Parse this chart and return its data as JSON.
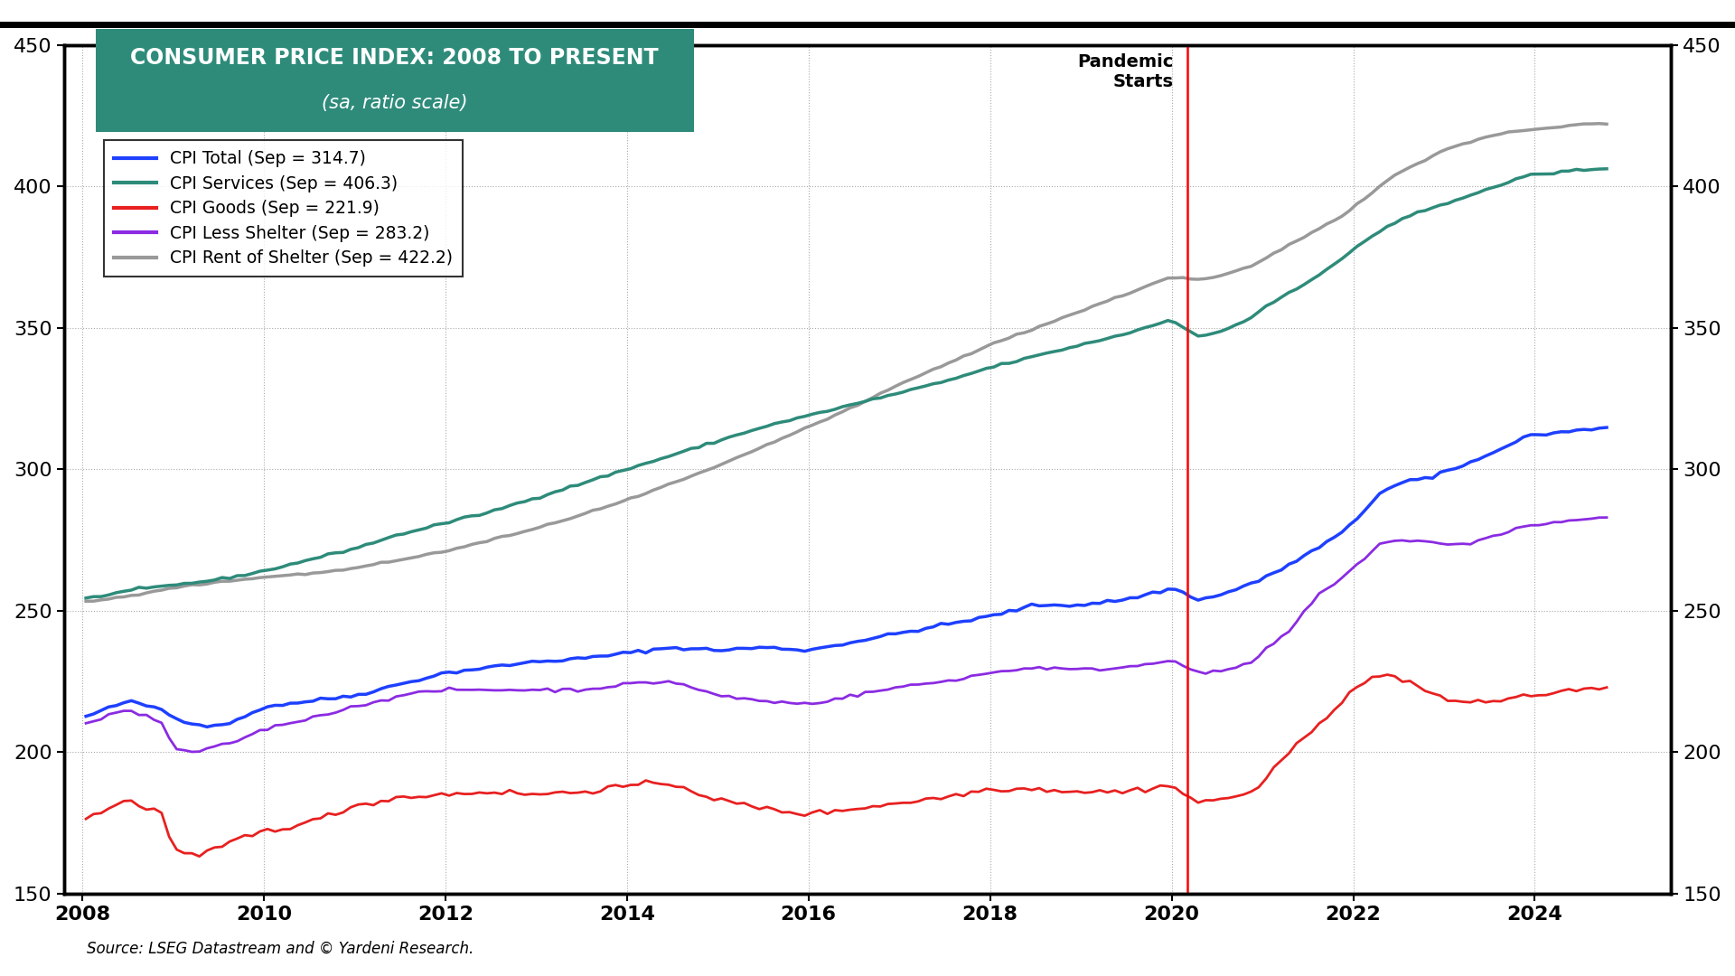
{
  "title_line1": "CONSUMER PRICE INDEX: 2008 TO PRESENT",
  "title_line2": "(sa, ratio scale)",
  "title_bg_color": "#2e8b7a",
  "source_text": "Source: LSEG Datastream and © Yardeni Research.",
  "pandemic_label": "Pandemic\nStarts",
  "pandemic_x": 2020.17,
  "ylim": [
    150,
    450
  ],
  "yticks": [
    150,
    200,
    250,
    300,
    350,
    400,
    450
  ],
  "xmin": 2007.8,
  "xmax": 2025.5,
  "xticks": [
    2008,
    2010,
    2012,
    2014,
    2016,
    2018,
    2020,
    2022,
    2024
  ],
  "series": {
    "cpi_total": {
      "label": "CPI Total (Sep = 314.7)",
      "color": "#1e40ff",
      "linewidth": 2.5
    },
    "cpi_services": {
      "label": "CPI Services (Sep = 406.3)",
      "color": "#2e8b7a",
      "linewidth": 2.5
    },
    "cpi_goods": {
      "label": "CPI Goods (Sep = 221.9)",
      "color": "#e82020",
      "linewidth": 2.0
    },
    "cpi_less_shelter": {
      "label": "CPI Less Shelter (Sep = 283.2)",
      "color": "#8b2be2",
      "linewidth": 2.0
    },
    "cpi_rent": {
      "label": "CPI Rent of Shelter (Sep = 422.2)",
      "color": "#999999",
      "linewidth": 2.5
    }
  },
  "background_color": "#ffffff",
  "grid_color": "#aaaaaa",
  "grid_style": "dotted"
}
